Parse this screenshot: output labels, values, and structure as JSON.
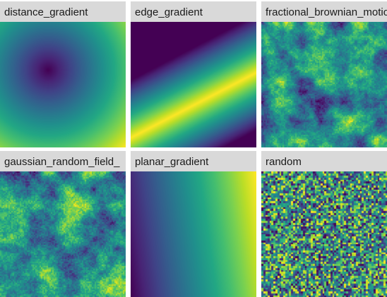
{
  "panels": [
    {
      "title": "distance_gradient",
      "pattern": "distance"
    },
    {
      "title": "edge_gradient",
      "pattern": "edge"
    },
    {
      "title": "fractional_brownian_motion",
      "pattern": "fbm"
    },
    {
      "title": "gaussian_random_field_",
      "pattern": "grf"
    },
    {
      "title": "planar_gradient",
      "pattern": "planar"
    },
    {
      "title": "random",
      "pattern": "random"
    }
  ],
  "colormap": "viridis",
  "colors": {
    "strip_background": "#d9d9d9",
    "viridis_low": "#440154",
    "viridis_mid": "#21918c",
    "viridis_high": "#fde725"
  }
}
